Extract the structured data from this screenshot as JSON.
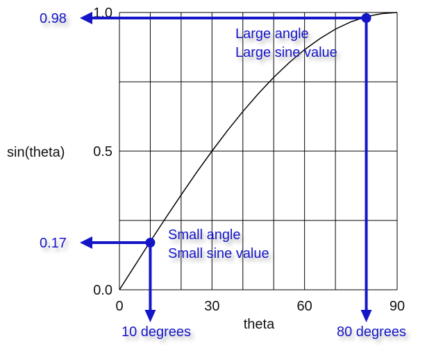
{
  "chart_data": {
    "type": "line",
    "title": "",
    "xlabel": "theta",
    "ylabel": "sin(theta)",
    "xlim": [
      0,
      90
    ],
    "ylim": [
      0,
      1
    ],
    "x_ticks": [
      "0",
      "30",
      "60",
      "90"
    ],
    "y_ticks": [
      "0.0",
      "0.5",
      "1.0"
    ],
    "grid": true,
    "series": [
      {
        "x": [
          0,
          5,
          10,
          15,
          20,
          25,
          30,
          35,
          40,
          45,
          50,
          55,
          60,
          65,
          70,
          75,
          80,
          85,
          90
        ],
        "y": [
          0.0,
          0.087,
          0.174,
          0.259,
          0.342,
          0.423,
          0.5,
          0.574,
          0.643,
          0.707,
          0.766,
          0.819,
          0.866,
          0.906,
          0.94,
          0.966,
          0.985,
          0.996,
          1.0
        ]
      }
    ],
    "annotations": {
      "small": {
        "x": 10,
        "y": 0.17,
        "value_label": "0.17",
        "angle_label": "10 degrees",
        "text_line1": "Small angle",
        "text_line2": "Small sine value"
      },
      "large": {
        "x": 80,
        "y": 0.98,
        "value_label": "0.98",
        "angle_label": "80 degrees",
        "text_line1": "Large angle",
        "text_line2": "Large sine value"
      }
    },
    "colors": {
      "curve": "#000000",
      "grid": "#000000",
      "annotation": "#1515c8"
    }
  }
}
